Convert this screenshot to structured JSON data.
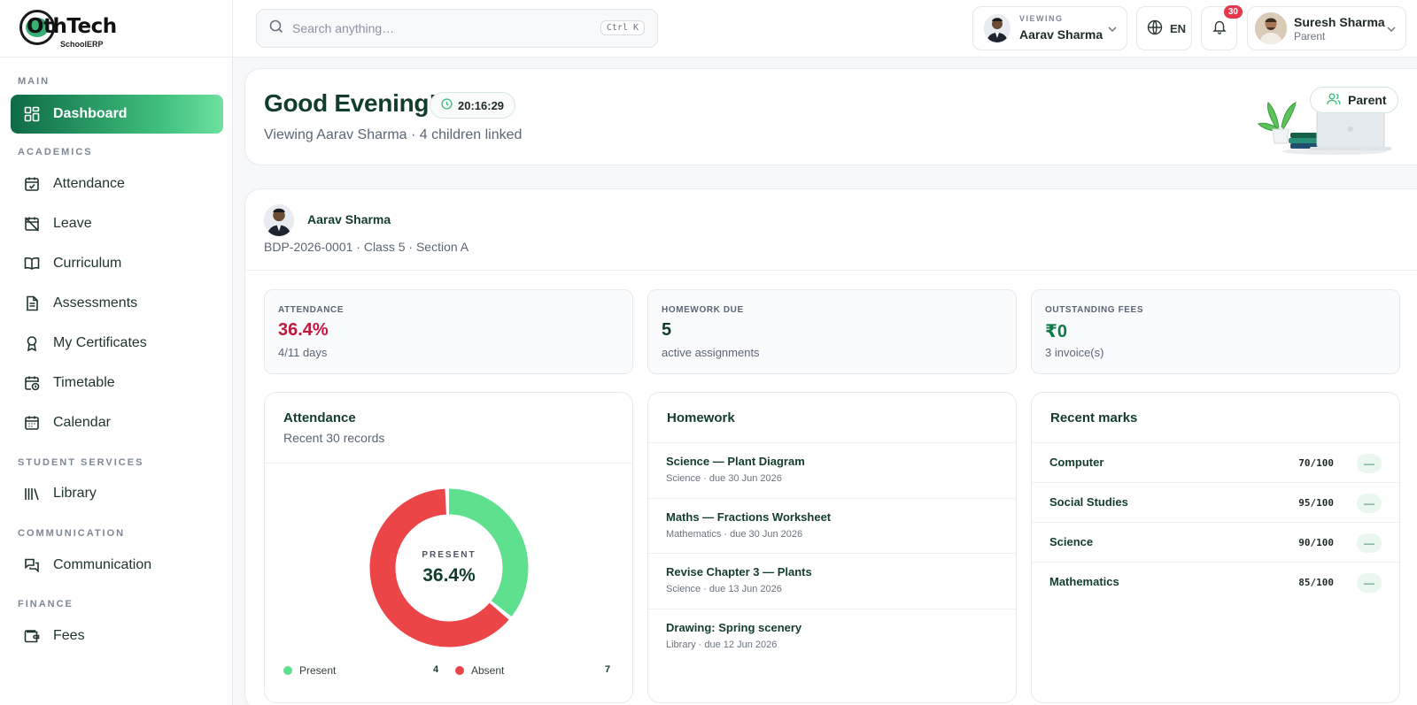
{
  "brand": {
    "name": "OthTech",
    "sub": "SchoolERP"
  },
  "sidebar": {
    "sections": {
      "main": "MAIN",
      "academics": "ACADEMICS",
      "student_services": "STUDENT SERVICES",
      "communication": "COMMUNICATION",
      "finance": "FINANCE"
    },
    "items": [
      {
        "label": "Dashboard",
        "icon": "dashboard-grid-icon",
        "active": true
      },
      {
        "label": "Attendance",
        "icon": "calendar-check-icon"
      },
      {
        "label": "Leave",
        "icon": "calendar-off-icon"
      },
      {
        "label": "Curriculum",
        "icon": "book-open-icon"
      },
      {
        "label": "Assessments",
        "icon": "document-icon"
      },
      {
        "label": "My Certificates",
        "icon": "award-icon"
      },
      {
        "label": "Timetable",
        "icon": "calendar-clock-icon"
      },
      {
        "label": "Calendar",
        "icon": "calendar-icon"
      },
      {
        "label": "Library",
        "icon": "library-icon"
      },
      {
        "label": "Communication",
        "icon": "chat-icon"
      },
      {
        "label": "Fees",
        "icon": "wallet-icon"
      }
    ]
  },
  "topbar": {
    "search_placeholder": "Search anything…",
    "search_shortcut": "Ctrl K",
    "viewing_label": "VIEWING",
    "viewing_name": "Aarav Sharma",
    "language": "EN",
    "notification_count": "30",
    "user_name": "Suresh Sharma",
    "user_role": "Parent"
  },
  "greeting": {
    "title": "Good Evening!",
    "time": "20:16:29",
    "subtitle": "Viewing Aarav Sharma · 4 children linked",
    "role_pill": "Parent"
  },
  "child": {
    "name": "Aarav Sharma",
    "meta": "BDP-2026-0001 · Class 5 · Section A"
  },
  "stats": [
    {
      "label": "ATTENDANCE",
      "value": "36.4%",
      "note": "4/11 days",
      "color": "#c0183f"
    },
    {
      "label": "HOMEWORK DUE",
      "value": "5",
      "note": "active assignments",
      "color": "#123d2b"
    },
    {
      "label": "OUTSTANDING FEES",
      "value": "₹0",
      "note": "3 invoice(s)",
      "color": "#0f7a48"
    }
  ],
  "attendance_panel": {
    "title": "Attendance",
    "subtitle": "Recent 30 records",
    "center_label": "PRESENT",
    "center_value": "36.4%",
    "present_label": "Present",
    "present_count": "4",
    "absent_label": "Absent",
    "absent_count": "7",
    "colors": {
      "present": "#5ee08f",
      "absent": "#ec4548"
    }
  },
  "chart_data": {
    "type": "pie",
    "categories": [
      "Present",
      "Absent"
    ],
    "values": [
      4,
      7
    ],
    "title": "Attendance"
  },
  "homework_panel": {
    "title": "Homework",
    "items": [
      {
        "title": "Science — Plant Diagram",
        "meta": "Science · due 30 Jun 2026"
      },
      {
        "title": "Maths — Fractions Worksheet",
        "meta": "Mathematics · due 30 Jun 2026"
      },
      {
        "title": "Revise Chapter 3 — Plants",
        "meta": "Science · due 13 Jun 2026"
      },
      {
        "title": "Drawing: Spring scenery",
        "meta": "Library · due 12 Jun 2026"
      }
    ]
  },
  "marks_panel": {
    "title": "Recent marks",
    "items": [
      {
        "subject": "Computer",
        "score": "70/100",
        "trend": "—"
      },
      {
        "subject": "Social Studies",
        "score": "95/100",
        "trend": "—"
      },
      {
        "subject": "Science",
        "score": "90/100",
        "trend": "—"
      },
      {
        "subject": "Mathematics",
        "score": "85/100",
        "trend": "—"
      }
    ]
  }
}
